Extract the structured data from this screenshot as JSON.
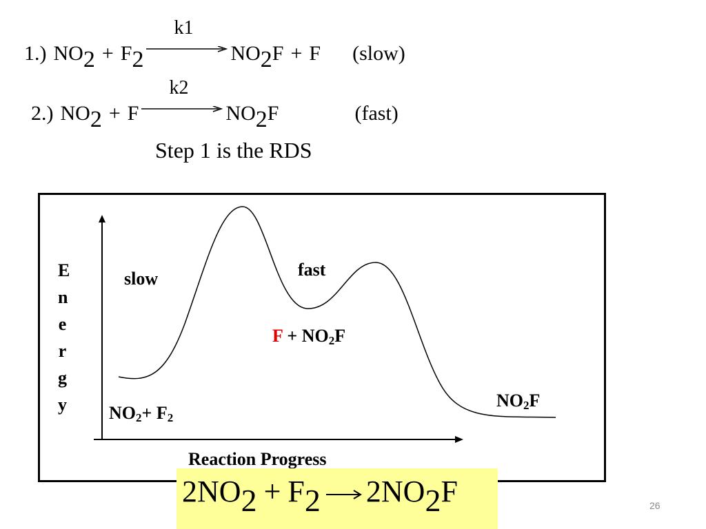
{
  "equations": [
    {
      "number": "1.)",
      "reactant_1": "NO",
      "reactant_1_sub": "2",
      "plus_1": "+",
      "reactant_2": "F",
      "reactant_2_sub": "2",
      "rate_constant": "k1",
      "product_1": "NO",
      "product_1_sub": "2",
      "product_1_tail": "F",
      "plus_2": "+",
      "product_2": "F",
      "speed": "(slow)"
    },
    {
      "number": "2.)",
      "reactant_1": "NO",
      "reactant_1_sub": "2",
      "plus_1": "+",
      "reactant_2": "F",
      "rate_constant": "k2",
      "product_1": "NO",
      "product_1_sub": "2",
      "product_1_tail": "F",
      "speed": "(fast)"
    }
  ],
  "note": "Step 1 is the RDS",
  "diagram": {
    "y_axis_label": "Energy",
    "x_axis_label": "Reaction Progress",
    "step_1_label": "slow",
    "step_2_label": "fast",
    "intermediate": {
      "species": "F",
      "rest": "+ NO",
      "sub": "2",
      "tail": "F"
    },
    "reactants": {
      "text": "NO",
      "sub": "2",
      "rest": "+ F",
      "sub_2": "2"
    },
    "product": {
      "text": "NO",
      "sub": "2",
      "tail": "F"
    }
  },
  "overall": {
    "reactant_1": "2NO",
    "sub_1": "2",
    "plus": "+",
    "reactant_2": "F",
    "sub_2": "2",
    "product": "2NO",
    "sub_3": "2",
    "tail": "F"
  },
  "page_number": "26"
}
